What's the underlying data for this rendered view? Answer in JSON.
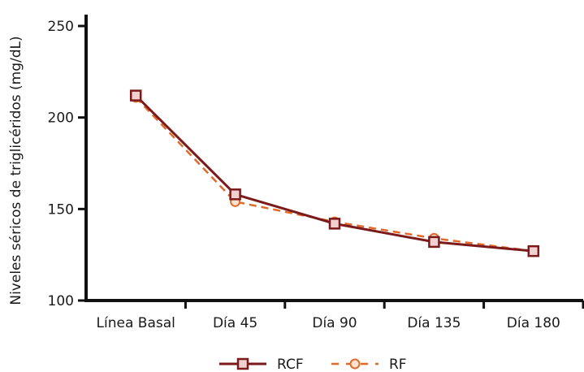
{
  "chart_data": {
    "type": "line",
    "title": "",
    "xlabel": "",
    "ylabel": "Niveles séricos de triglicéridos (mg/dL)",
    "categories": [
      "Línea Basal",
      "Día 45",
      "Día 90",
      "Día 135",
      "Día 180"
    ],
    "ylim": [
      100,
      250
    ],
    "yticks": [
      100,
      150,
      200,
      250
    ],
    "grid": false,
    "legend_position": "bottom",
    "series": [
      {
        "name": "RCF",
        "values": [
          212,
          158,
          142,
          132,
          127
        ],
        "color": "#7b1a1a",
        "line_style": "solid",
        "marker": "square",
        "marker_fill": "#f2d0d0"
      },
      {
        "name": "RF",
        "values": [
          211,
          154,
          143,
          134,
          127
        ],
        "color": "#e06a2c",
        "line_style": "dashed",
        "marker": "circle",
        "marker_fill": "#fbe3d3"
      }
    ]
  }
}
